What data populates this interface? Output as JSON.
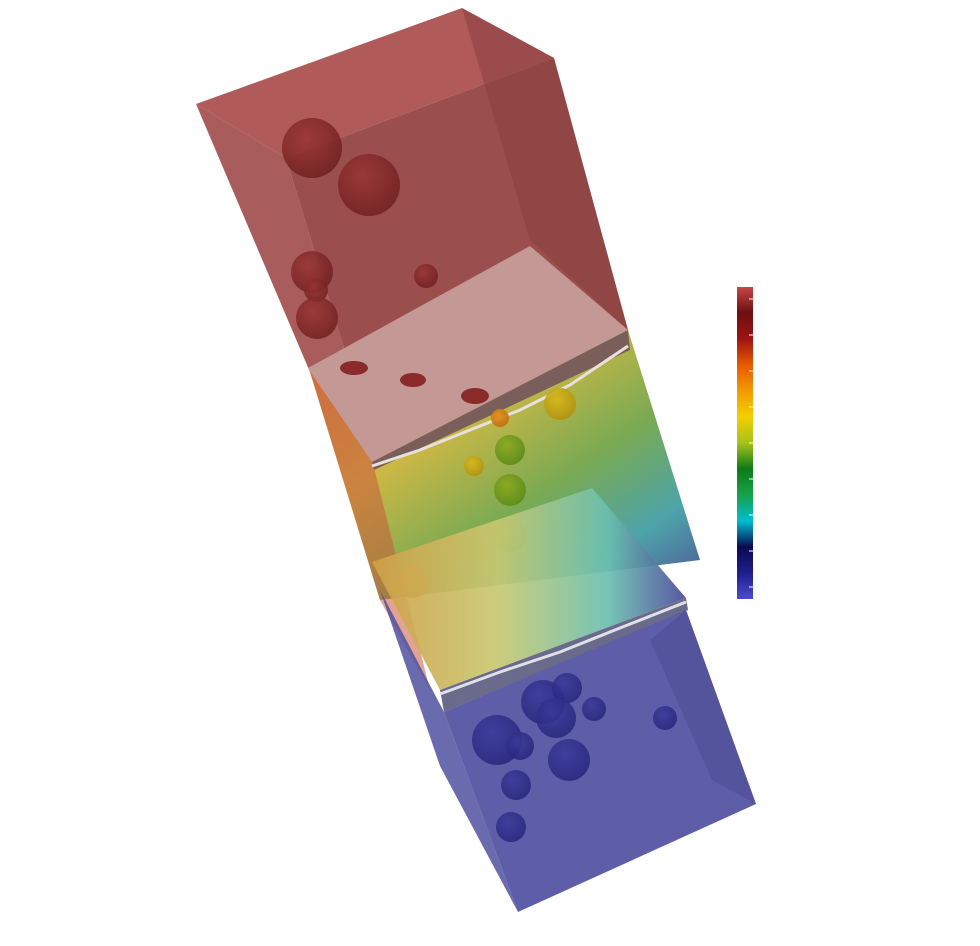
{
  "scene": {
    "background": "#ffffff",
    "colormap": [
      "#4b4bd0",
      "#1e1e8c",
      "#0a0a50",
      "#00bcd0",
      "#17a34a",
      "#0c7a18",
      "#a6c21a",
      "#f2d000",
      "#f29a00",
      "#e85a00",
      "#9e1414",
      "#6b0f0f",
      "#c84646"
    ],
    "top_block_color": "#a85050",
    "bottom_block_color": "#5a5aa8",
    "slab_top_color": "#c89a96",
    "slab_bottom_color": "#b8c890",
    "colorbar": {
      "orientation": "vertical",
      "tick_count": 9,
      "labels_visible": false
    }
  }
}
